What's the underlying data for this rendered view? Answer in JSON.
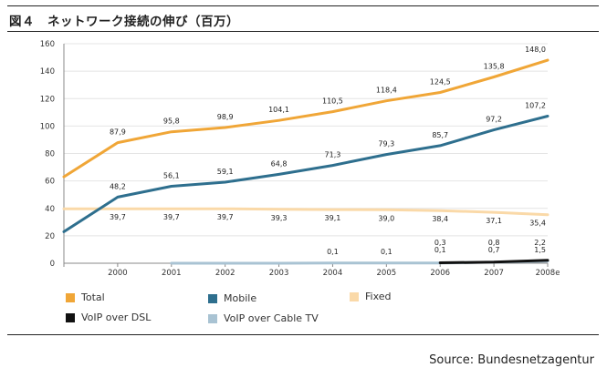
{
  "figure": {
    "title": "図４　ネットワーク接続の伸び（百万）",
    "source": "Source: Bundesnetzagentur"
  },
  "chart_data": {
    "type": "line",
    "x": [
      "",
      "2000",
      "2001",
      "2002",
      "2003",
      "2004",
      "2005",
      "2006",
      "2007",
      "2008e"
    ],
    "ylim": [
      0,
      160
    ],
    "yticks": [
      0,
      20,
      40,
      60,
      80,
      100,
      120,
      140,
      160
    ],
    "grid": true,
    "legend_position": "bottom",
    "series": [
      {
        "name": "Total",
        "color": "#f0a637",
        "values": [
          63,
          87.9,
          95.8,
          98.9,
          104.1,
          110.5,
          118.4,
          124.5,
          135.8,
          148.0
        ],
        "labels": [
          "",
          "87,9",
          "95,8",
          "98,9",
          "104,1",
          "110,5",
          "118,4",
          "124,5",
          "135,8",
          "148,0"
        ],
        "label_pos": "above"
      },
      {
        "name": "Mobile",
        "color": "#2e6f8e",
        "values": [
          23,
          48.2,
          56.1,
          59.1,
          64.8,
          71.3,
          79.3,
          85.7,
          97.2,
          107.2
        ],
        "labels": [
          "",
          "48,2",
          "56,1",
          "59,1",
          "64,8",
          "71,3",
          "79,3",
          "85,7",
          "97,2",
          "107,2"
        ],
        "label_pos": "above"
      },
      {
        "name": "Fixed",
        "color": "#fad9a8",
        "values": [
          39.7,
          39.7,
          39.7,
          39.7,
          39.3,
          39.1,
          39.0,
          38.4,
          37.1,
          35.4
        ],
        "labels": [
          "",
          "39,7",
          "39,7",
          "39,7",
          "39,3",
          "39,1",
          "39,0",
          "38,4",
          "37,1",
          "35,4"
        ],
        "label_pos": "below"
      },
      {
        "name": "VoIP over DSL",
        "color": "#111111",
        "values": [
          null,
          null,
          null,
          null,
          null,
          null,
          null,
          0.3,
          0.8,
          2.2
        ],
        "labels": [
          "",
          "",
          "",
          "",
          "",
          "",
          "",
          "0,3",
          "0,8",
          "2,2"
        ],
        "label_pos": "above"
      },
      {
        "name": "VoIP over Cable TV",
        "color": "#a9c3d3",
        "values": [
          null,
          null,
          0,
          0,
          0,
          0.1,
          0.1,
          0.1,
          0.7,
          1.5
        ],
        "labels": [
          "",
          "",
          "",
          "",
          "",
          "0,1",
          "0,1",
          "0,1",
          "0,7",
          "1,5"
        ],
        "label_pos": "mid"
      }
    ]
  }
}
